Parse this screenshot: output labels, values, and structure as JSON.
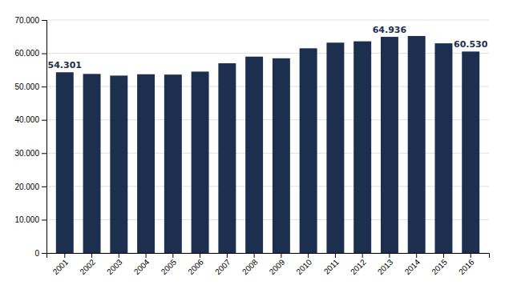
{
  "chart_data": {
    "type": "bar",
    "categories": [
      "2001",
      "2002",
      "2003",
      "2004",
      "2005",
      "2006",
      "2007",
      "2008",
      "2009",
      "2010",
      "2011",
      "2012",
      "2013",
      "2014",
      "2015",
      "2016"
    ],
    "values": [
      54301,
      53800,
      53300,
      53700,
      53600,
      54500,
      57000,
      59000,
      58500,
      61500,
      63200,
      63600,
      64936,
      65200,
      63000,
      60530
    ],
    "color": "#1c2f4e",
    "ylim": [
      0,
      70000
    ],
    "yticks": [
      0,
      {
        "value": 10000,
        "label": "10.000"
      },
      {
        "value": 20000,
        "label": "20.000"
      },
      {
        "value": 30000,
        "label": "30.000"
      },
      {
        "value": 40000,
        "label": "40.000"
      },
      {
        "value": 50000,
        "label": "50.000"
      },
      {
        "value": 60000,
        "label": "60.000"
      },
      {
        "value": 70000,
        "label": "70.000"
      }
    ],
    "grid": true,
    "annotations": [
      {
        "category": "2001",
        "value": 54301,
        "label": "54.301"
      },
      {
        "category": "2013",
        "value": 64936,
        "label": "64.936"
      },
      {
        "category": "2016",
        "value": 60530,
        "label": "60.530"
      }
    ]
  }
}
